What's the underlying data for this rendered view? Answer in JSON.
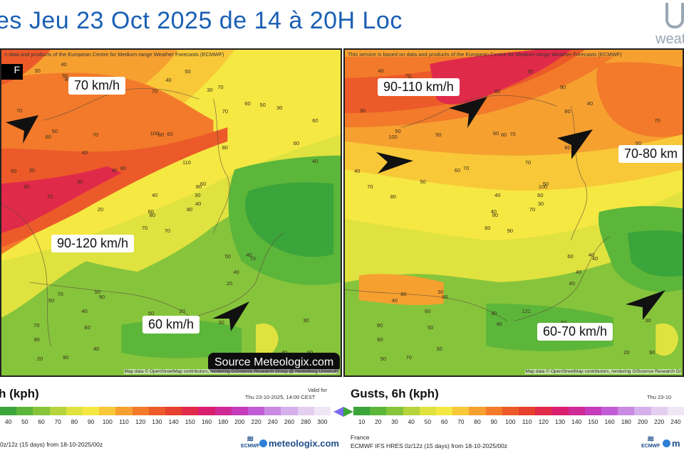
{
  "header": {
    "title": "es  Jeu 23 Oct 2025  de 14 à 20H Loc",
    "logo_text": "weat"
  },
  "left_panel": {
    "credit": "n data and products of the European Centre for Medium-range Weather Forecasts (ECMWF)",
    "black_box_text": "F",
    "map_credit": "Map data © OpenStreetMap contributors, rendering GIScience Research Group @ Heidelberg University",
    "labels": [
      "70 km/h",
      "90-120 km/h",
      "60 km/h"
    ],
    "source_badge": "Source Meteologix.com",
    "numbers": [
      "70",
      "60",
      "80",
      "70",
      "80",
      "90",
      "70",
      "60",
      "70",
      "80",
      "80",
      "90",
      "70",
      "60",
      "70",
      "80",
      "90",
      "100",
      "110",
      "70",
      "80",
      "90",
      "60",
      "80",
      "60",
      "70",
      "50",
      "70",
      "60",
      "50",
      "40",
      "60",
      "50",
      "40",
      "70",
      "60",
      "50",
      "40",
      "30",
      "40",
      "50",
      "40",
      "30",
      "20",
      "40",
      "50",
      "30",
      "20",
      "30",
      "40",
      "50",
      "60",
      "70",
      "40",
      "30",
      "40",
      "50",
      "30",
      "20",
      "30",
      "40",
      "20",
      "30",
      "40",
      "50",
      "40",
      "30"
    ]
  },
  "right_panel": {
    "credit": "This service is based on data and products of the European Centre for Medium-range Weather Forecasts (ECMWF)",
    "map_credit": "Map data © OpenStreetMap contributors, rendering GIScience Research Gr",
    "labels": [
      "90-110 km/h",
      "70-80 km",
      "60-70 km/h"
    ],
    "numbers": [
      "90",
      "100",
      "80",
      "90",
      "100",
      "80",
      "90",
      "70",
      "80",
      "70",
      "80",
      "90",
      "80",
      "70",
      "60",
      "80",
      "70",
      "60",
      "70",
      "80",
      "70",
      "60",
      "50",
      "60",
      "50",
      "40",
      "50",
      "60",
      "70",
      "60",
      "50",
      "40",
      "30",
      "40",
      "50",
      "40",
      "30",
      "20",
      "30",
      "40",
      "50",
      "60",
      "50",
      "40",
      "30",
      "40",
      "60",
      "50",
      "40",
      "30",
      "40",
      "50",
      "30",
      "40",
      "50",
      "60",
      "70",
      "40",
      "121"
    ]
  },
  "footer_left": {
    "title": "h (kph)",
    "valid_for": "Valid for",
    "valid_time": "Thu 23-10-2025, 14:00 CEST",
    "ticks": [
      "40",
      "50",
      "60",
      "70",
      "80",
      "90",
      "100",
      "110",
      "120",
      "130",
      "140",
      "150",
      "160",
      "180",
      "200",
      "220",
      "240",
      "260",
      "280",
      "300"
    ],
    "model_text": "0z/12z (15 days) from  18-10-2025/00z",
    "ecmwf": "ECMWF",
    "brand": "meteologix.com"
  },
  "footer_right": {
    "title": "Gusts, 6h (kph)",
    "valid_time": "Thu 23-10",
    "ticks": [
      "10",
      "20",
      "30",
      "40",
      "50",
      "60",
      "70",
      "80",
      "90",
      "100",
      "110",
      "120",
      "130",
      "140",
      "150",
      "160",
      "180",
      "200",
      "220",
      "240"
    ],
    "region": "France",
    "model_text": "ECMWF IFS HRES 0z/12z (15 days) from  18-10-2025/00z",
    "ecmwf": "ECMWF",
    "brand": "m"
  },
  "colors": {
    "scale": [
      "#3aa53a",
      "#5cb63a",
      "#86c43c",
      "#b5d43e",
      "#dfe23f",
      "#f5e842",
      "#f8c838",
      "#f6a030",
      "#f27a2a",
      "#ec5a2a",
      "#e6402e",
      "#e02a4a",
      "#d81e6e",
      "#d02a96",
      "#c43cbc",
      "#c25cd6",
      "#c88ae2",
      "#d6b0ea",
      "#e4cff0",
      "#f0e6f6"
    ],
    "title_blue": "#1a5fb4"
  }
}
